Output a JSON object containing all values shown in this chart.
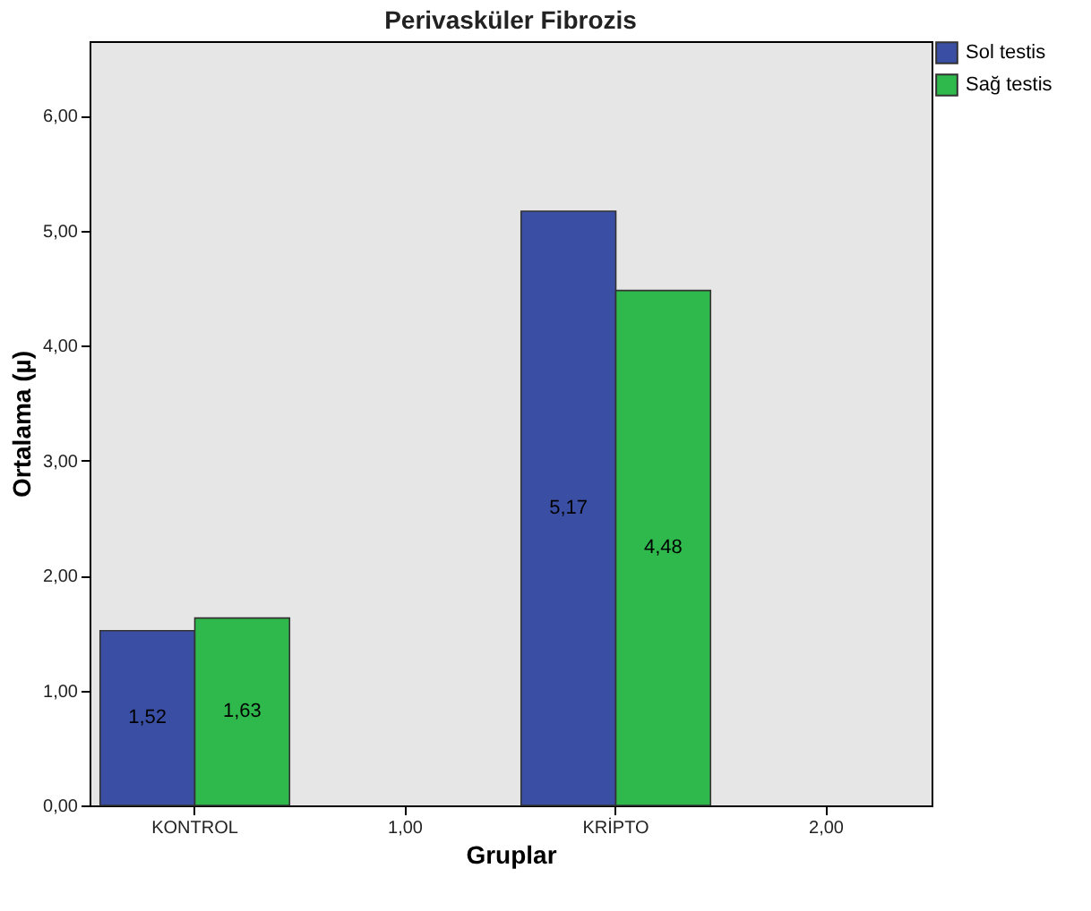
{
  "chart_data": {
    "type": "bar",
    "title": "Perivasküler Fibrozis",
    "xlabel": "Gruplar",
    "ylabel": "Ortalama (µ)",
    "categories": [
      "KONTROL",
      "1,00",
      "KRİPTO",
      "2,00"
    ],
    "series": [
      {
        "name": "Sol testis",
        "color": "#3a4fa3",
        "values": [
          1.52,
          null,
          5.17,
          null
        ],
        "value_labels": [
          "1,52",
          null,
          "5,17",
          null
        ]
      },
      {
        "name": "Sağ testis",
        "color": "#2fb84b",
        "values": [
          1.63,
          null,
          4.48,
          null
        ],
        "value_labels": [
          "1,63",
          null,
          "4,48",
          null
        ]
      }
    ],
    "ylim": [
      0,
      6.65
    ],
    "yticks": [
      {
        "value": 0,
        "label": "0,00"
      },
      {
        "value": 1,
        "label": "1,00"
      },
      {
        "value": 2,
        "label": "2,00"
      },
      {
        "value": 3,
        "label": "3,00"
      },
      {
        "value": 4,
        "label": "4,00"
      },
      {
        "value": 5,
        "label": "5,00"
      },
      {
        "value": 6,
        "label": "6,00"
      }
    ],
    "grid": false,
    "legend": "top right"
  }
}
